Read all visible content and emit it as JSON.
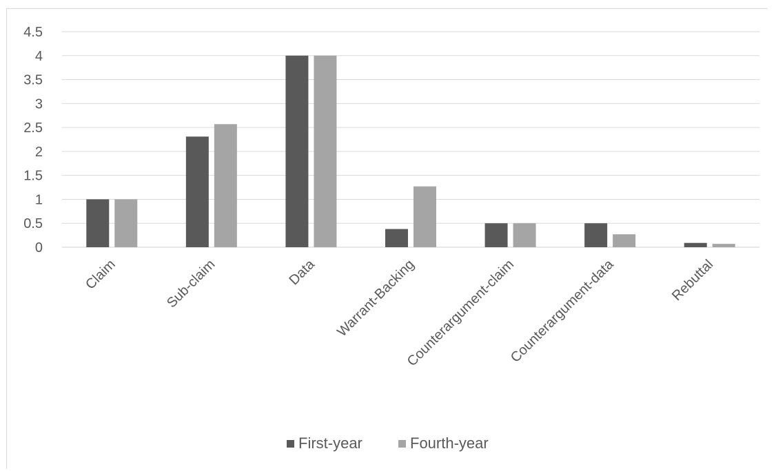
{
  "chart_data": {
    "type": "bar",
    "categories": [
      "Claim",
      "Sub-claim",
      "Data",
      "Warrant-Backing",
      "Counterargument-claim",
      "Counterargument-data",
      "Rebuttal"
    ],
    "series": [
      {
        "name": "First-year",
        "values": [
          1.0,
          2.31,
          4.0,
          0.38,
          0.5,
          0.5,
          0.09
        ],
        "color": "#595959"
      },
      {
        "name": "Fourth-year",
        "values": [
          1.0,
          2.57,
          4.0,
          1.27,
          0.5,
          0.27,
          0.07
        ],
        "color": "#a5a5a5"
      }
    ],
    "y_ticks": [
      "0",
      "0.5",
      "1",
      "1.5",
      "2",
      "2.5",
      "3",
      "3.5",
      "4",
      "4.5"
    ],
    "ylim": [
      0,
      4.5
    ],
    "grid": true,
    "legend_position": "bottom"
  }
}
